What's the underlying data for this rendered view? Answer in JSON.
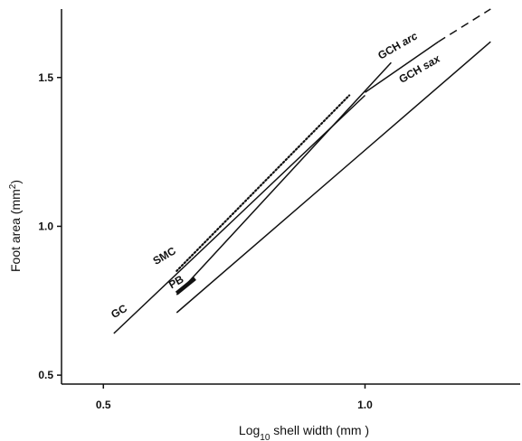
{
  "chart_data": {
    "type": "line",
    "title": "",
    "xlabel": {
      "main": "Log",
      "sub": "10",
      "rest": " shell width (mm )"
    },
    "ylabel": {
      "main": "Foot area (mm",
      "sup": "2",
      "rest": ")"
    },
    "xlim": [
      0.42,
      1.3
    ],
    "ylim": [
      0.47,
      1.73
    ],
    "x_ticks": [
      {
        "value": 0.5,
        "label": "0.5"
      },
      {
        "value": 1.0,
        "label": "1.0"
      }
    ],
    "y_ticks": [
      {
        "value": 0.5,
        "label": "0.5"
      },
      {
        "value": 1.0,
        "label": "1.0"
      },
      {
        "value": 1.5,
        "label": "1.5"
      }
    ],
    "grid": false,
    "series": [
      {
        "name": "GC",
        "style": "solid",
        "points": [
          [
            0.52,
            0.64
          ],
          [
            1.0,
            1.44
          ]
        ],
        "label": {
          "text": "GC",
          "italic": "",
          "at": [
            0.52,
            0.69
          ],
          "angle": -30
        }
      },
      {
        "name": "SMC",
        "style": "dotted",
        "points": [
          [
            0.64,
            0.85
          ],
          [
            0.97,
            1.44
          ]
        ],
        "label": {
          "text": "SMC",
          "italic": "",
          "at": [
            0.6,
            0.87
          ],
          "angle": -30
        }
      },
      {
        "name": "PB",
        "style": "solid",
        "points": [
          [
            0.64,
            0.77
          ],
          [
            1.05,
            1.55
          ]
        ],
        "label": {
          "text": "PB",
          "italic": "",
          "at": [
            0.63,
            0.79
          ],
          "angle": -30
        }
      },
      {
        "name": "PB-thick",
        "style": "thick",
        "points": [
          [
            0.64,
            0.775
          ],
          [
            0.675,
            0.825
          ]
        ],
        "label": null
      },
      {
        "name": "GCH arc",
        "style": "solid",
        "points": [
          [
            1.0,
            1.45
          ],
          [
            1.14,
            1.62
          ]
        ],
        "label": {
          "text": "GCH ",
          "italic": "arc",
          "at": [
            1.03,
            1.56
          ],
          "angle": -30
        }
      },
      {
        "name": "GCH arc-ext",
        "style": "dashed",
        "points": [
          [
            1.14,
            1.62
          ],
          [
            1.24,
            1.73
          ]
        ],
        "label": null
      },
      {
        "name": "GCH sax",
        "style": "solid",
        "points": [
          [
            0.64,
            0.71
          ],
          [
            1.24,
            1.62
          ]
        ],
        "label": {
          "text": "GCH ",
          "italic": "sax",
          "at": [
            1.07,
            1.48
          ],
          "angle": -30
        }
      }
    ]
  }
}
